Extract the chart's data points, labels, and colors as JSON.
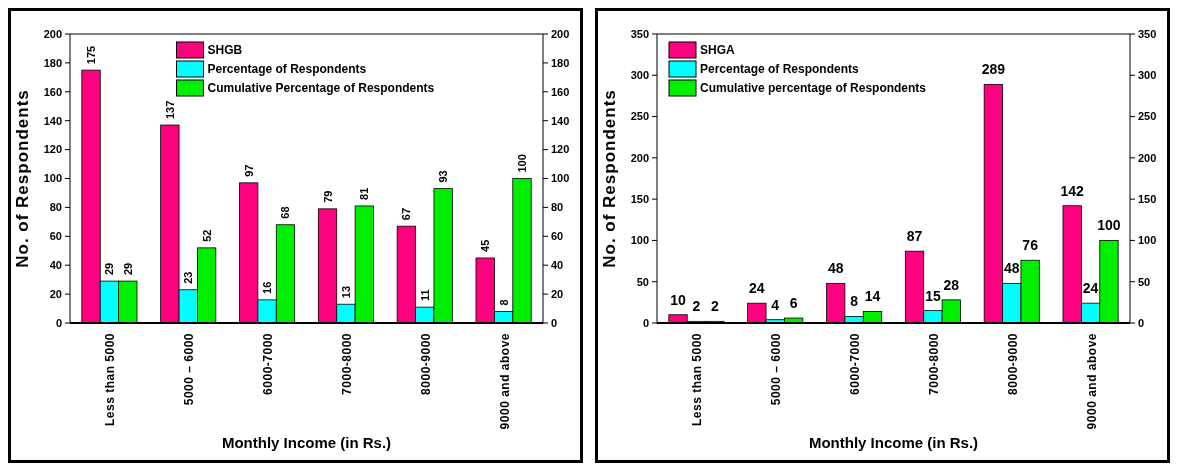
{
  "chart_data": [
    {
      "type": "bar",
      "xlabel": "Monthly Income (in Rs.)",
      "ylabel": "No. of Respondents",
      "categories": [
        "Less than 5000",
        "5000 – 6000",
        "6000-7000",
        "7000-8000",
        "8000-9000",
        "9000 and above"
      ],
      "series": [
        {
          "name": "SHGB",
          "color": "#ff0080",
          "values": [
            175,
            137,
            97,
            79,
            67,
            45
          ]
        },
        {
          "name": "Percentage of Respondents",
          "color": "#00ffff",
          "values": [
            29,
            23,
            16,
            13,
            11,
            8
          ]
        },
        {
          "name": "Cumulative Percentage of Respondents",
          "color": "#00ee00",
          "values": [
            29,
            52,
            68,
            81,
            93,
            100
          ]
        }
      ],
      "ylim": [
        0,
        200
      ],
      "yticks": [
        0,
        20,
        40,
        60,
        80,
        100,
        120,
        140,
        160,
        180,
        200
      ],
      "y2lim": [
        0,
        200
      ],
      "y2ticks": [
        0,
        20,
        40,
        60,
        80,
        100,
        120,
        140,
        160,
        180,
        200
      ],
      "data_labels": true,
      "legend": "top"
    },
    {
      "type": "bar",
      "xlabel": "Monthly Income (in Rs.)",
      "ylabel": "No. of Respondents",
      "categories": [
        "Less than 5000",
        "5000 – 6000",
        "6000-7000",
        "7000-8000",
        "8000-9000",
        "9000 and above"
      ],
      "series": [
        {
          "name": "SHGA",
          "color": "#ff0080",
          "values": [
            10,
            24,
            48,
            87,
            289,
            142
          ]
        },
        {
          "name": "Percentage of Respondents",
          "color": "#00ffff",
          "values": [
            2,
            4,
            8,
            15,
            48,
            24
          ]
        },
        {
          "name": "Cumulative percentage of Respondents",
          "color": "#00ee00",
          "values": [
            2,
            6,
            14,
            28,
            76,
            100
          ]
        }
      ],
      "ylim": [
        0,
        350
      ],
      "yticks": [
        0,
        50,
        100,
        150,
        200,
        250,
        300,
        350
      ],
      "y2lim": [
        0,
        350
      ],
      "y2ticks": [
        0,
        50,
        100,
        150,
        200,
        250,
        300,
        350
      ],
      "data_labels": true,
      "legend": "top left"
    }
  ]
}
